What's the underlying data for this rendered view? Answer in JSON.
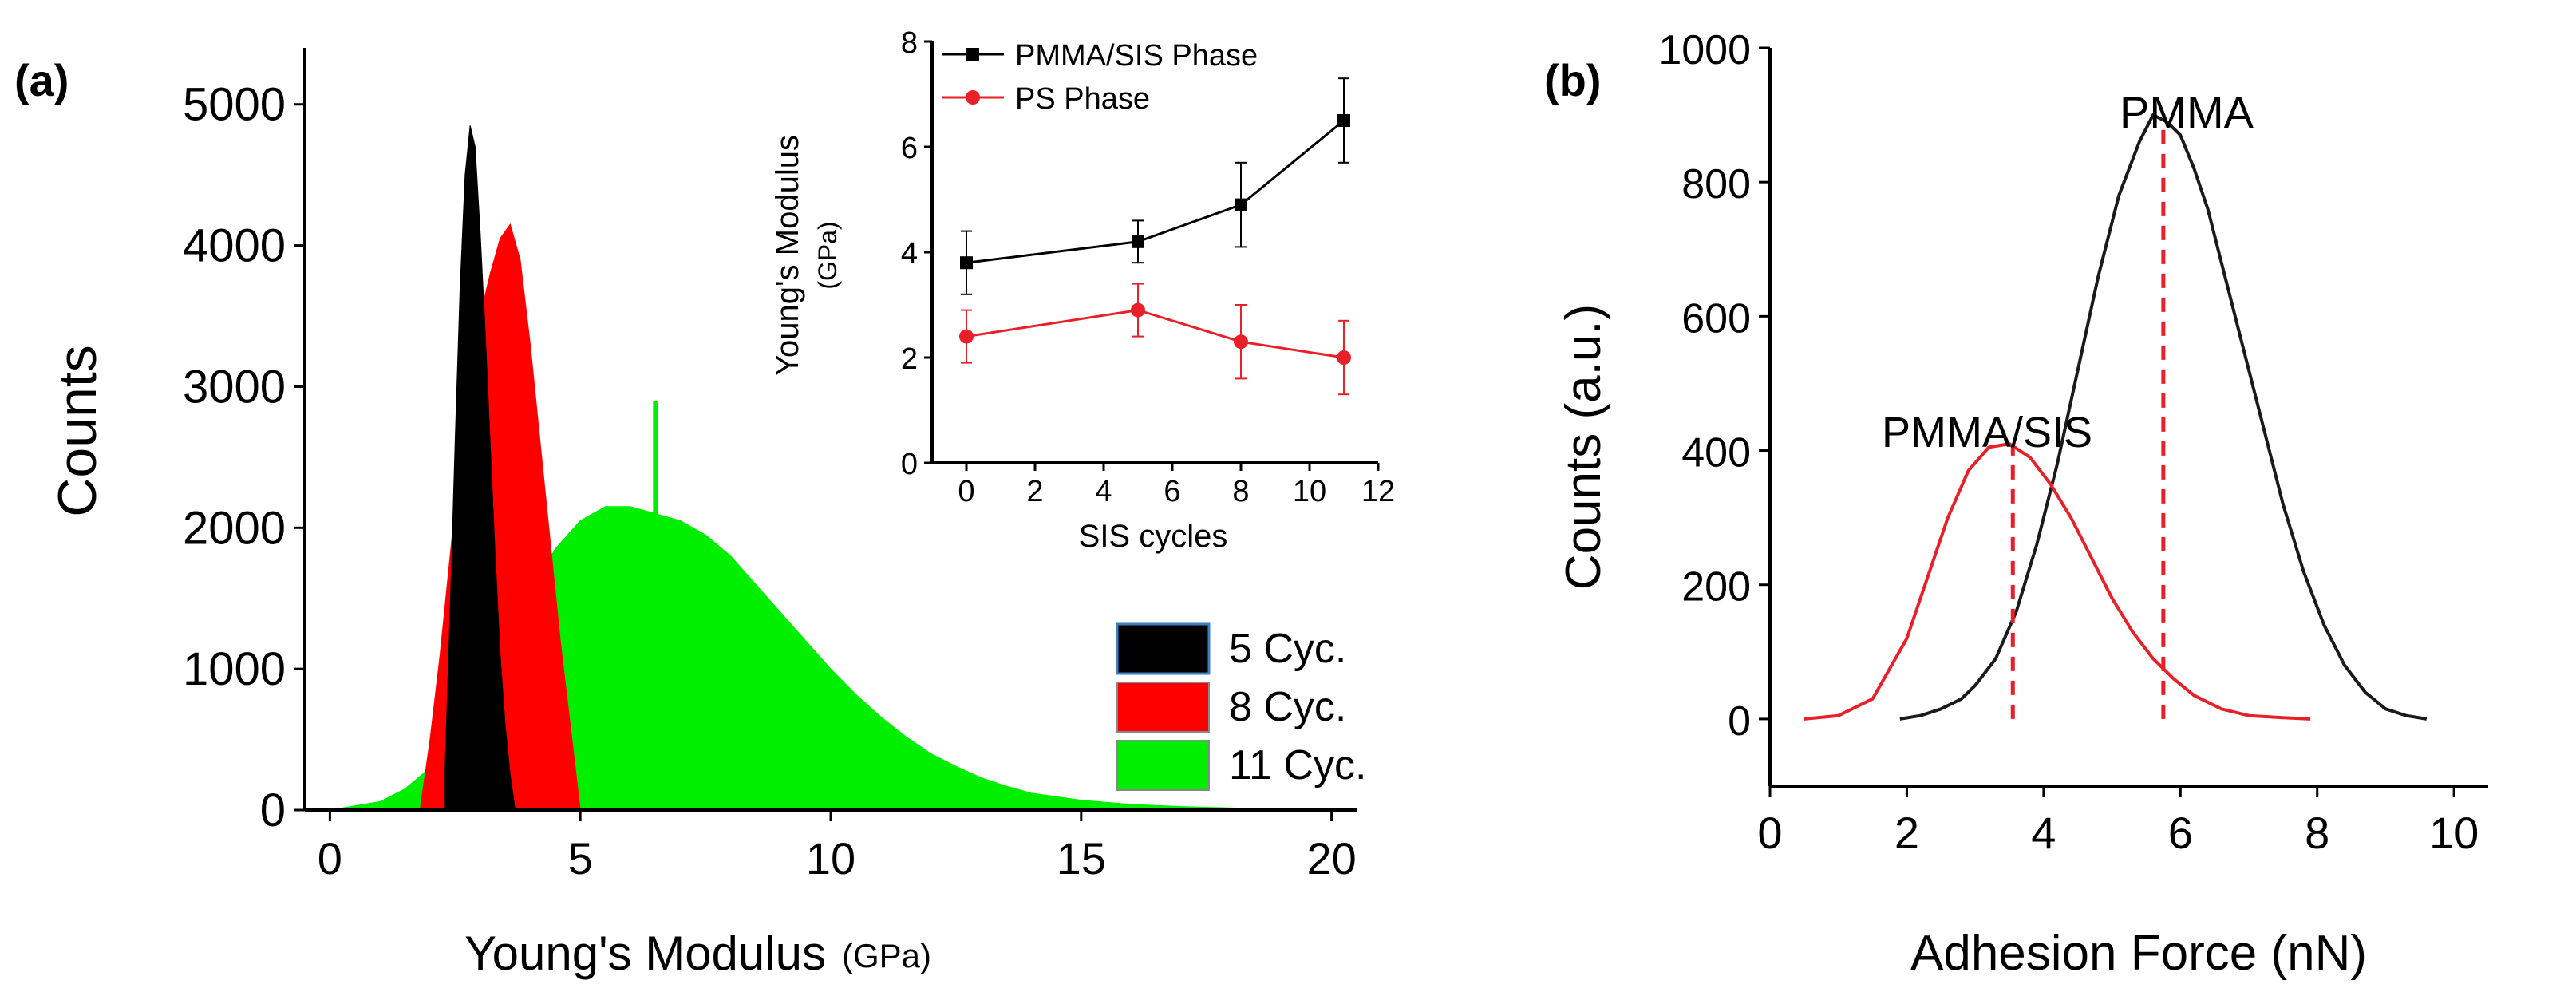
{
  "chart_data": [
    {
      "panel": "(a)",
      "type": "histogram",
      "xlabel": "Young's Modulus",
      "xlabel_unit": "(GPa)",
      "ylabel": "Counts",
      "xlim": [
        -0.5,
        20.5
      ],
      "ylim": [
        0,
        5400
      ],
      "xticks": [
        "0",
        "5",
        "10",
        "15",
        "20"
      ],
      "yticks": [
        "0",
        "1000",
        "2000",
        "3000",
        "4000",
        "5000"
      ],
      "legend": [
        "5 Cyc.",
        "8 Cyc.",
        "11 Cyc."
      ],
      "series": [
        {
          "name": "5 Cyc.",
          "color": "#000000",
          "x": [
            2.3,
            2.4,
            2.5,
            2.6,
            2.7,
            2.8,
            2.9,
            3.0,
            3.1,
            3.2,
            3.3,
            3.4,
            3.5,
            3.6,
            3.7
          ],
          "y": [
            300,
            1400,
            2600,
            3700,
            4500,
            4850,
            4700,
            4100,
            3400,
            2600,
            1800,
            1100,
            600,
            250,
            0
          ]
        },
        {
          "name": "8 Cyc.",
          "color": "#ff0000",
          "x": [
            1.8,
            2.0,
            2.2,
            2.4,
            2.6,
            2.8,
            3.0,
            3.2,
            3.4,
            3.6,
            3.8,
            4.0,
            4.2,
            4.4,
            4.6,
            4.8,
            5.0
          ],
          "y": [
            0,
            500,
            1100,
            1800,
            2500,
            3100,
            3500,
            3800,
            4050,
            4150,
            3900,
            3300,
            2600,
            1900,
            1200,
            600,
            0
          ]
        },
        {
          "name": "11 Cyc.",
          "color": "#00ee00",
          "x": [
            0,
            1,
            1.5,
            2,
            2.5,
            3,
            3.5,
            4,
            4.5,
            5,
            5.5,
            6,
            6.5,
            7,
            7.5,
            8,
            8.5,
            9,
            9.5,
            10,
            10.5,
            11,
            11.5,
            12,
            12.5,
            13,
            13.5,
            14,
            15,
            16,
            17,
            18,
            19,
            20
          ],
          "y": [
            0,
            60,
            150,
            300,
            550,
            850,
            1200,
            1550,
            1850,
            2050,
            2150,
            2150,
            2100,
            2050,
            1950,
            1800,
            1600,
            1400,
            1200,
            1000,
            820,
            660,
            520,
            400,
            310,
            230,
            170,
            120,
            70,
            40,
            25,
            15,
            8,
            0
          ]
        }
      ],
      "spike": {
        "x": 6.5,
        "y": 2900
      }
    },
    {
      "panel": "inset",
      "type": "line",
      "xlabel": "SIS cycles",
      "ylabel": "Young's Modulus",
      "ylabel_unit": "(GPa)",
      "xlim": [
        -1,
        12
      ],
      "ylim": [
        0,
        8
      ],
      "xticks": [
        "0",
        "2",
        "4",
        "6",
        "8",
        "10",
        "12"
      ],
      "yticks": [
        "0",
        "2",
        "4",
        "6",
        "8"
      ],
      "series": [
        {
          "name": "PMMA/SIS Phase",
          "color": "#000000",
          "marker": "square",
          "x": [
            0,
            5,
            8,
            11
          ],
          "y": [
            3.8,
            4.2,
            4.9,
            6.5
          ],
          "err": [
            0.6,
            0.4,
            0.8,
            0.8
          ]
        },
        {
          "name": "PS Phase",
          "color": "#e8202a",
          "marker": "circle",
          "x": [
            0,
            5,
            8,
            11
          ],
          "y": [
            2.4,
            2.9,
            2.3,
            2.0
          ],
          "err": [
            0.5,
            0.5,
            0.7,
            0.7
          ]
        }
      ]
    },
    {
      "panel": "(b)",
      "type": "line",
      "xlabel": "Adhesion Force (nN)",
      "ylabel": "Counts (a.u.)",
      "xlim": [
        0,
        10.5
      ],
      "ylim": [
        -100,
        1000
      ],
      "xticks": [
        "0",
        "2",
        "4",
        "6",
        "8",
        "10"
      ],
      "yticks": [
        "0",
        "200",
        "400",
        "600",
        "800",
        "1000"
      ],
      "annotations": [
        "PMMA",
        "PMMA/SIS"
      ],
      "series": [
        {
          "name": "PMMA",
          "color": "#1a1a1a",
          "x": [
            1.9,
            2.2,
            2.5,
            2.8,
            3.0,
            3.3,
            3.6,
            3.9,
            4.2,
            4.5,
            4.8,
            5.1,
            5.4,
            5.6,
            5.8,
            6.0,
            6.2,
            6.4,
            6.6,
            6.9,
            7.2,
            7.5,
            7.8,
            8.1,
            8.4,
            8.7,
            9.0,
            9.3,
            9.6
          ],
          "y": [
            0,
            5,
            15,
            30,
            50,
            90,
            160,
            260,
            380,
            520,
            660,
            780,
            860,
            900,
            890,
            870,
            820,
            760,
            680,
            560,
            440,
            320,
            220,
            140,
            80,
            40,
            15,
            5,
            0
          ]
        },
        {
          "name": "PMMA/SIS",
          "color": "#e8202a",
          "x": [
            0.5,
            1.0,
            1.5,
            2.0,
            2.3,
            2.6,
            2.9,
            3.2,
            3.5,
            3.8,
            4.1,
            4.4,
            4.7,
            5.0,
            5.3,
            5.6,
            5.9,
            6.2,
            6.6,
            7.0,
            7.5,
            7.9
          ],
          "y": [
            0,
            5,
            30,
            120,
            210,
            300,
            370,
            405,
            410,
            390,
            350,
            300,
            240,
            180,
            130,
            90,
            60,
            35,
            15,
            5,
            2,
            0
          ]
        }
      ],
      "dashed_lines": [
        {
          "x": 3.55,
          "y": 410,
          "color": "#e8202a"
        },
        {
          "x": 5.75,
          "y": 890,
          "color": "#e8202a"
        }
      ]
    }
  ]
}
